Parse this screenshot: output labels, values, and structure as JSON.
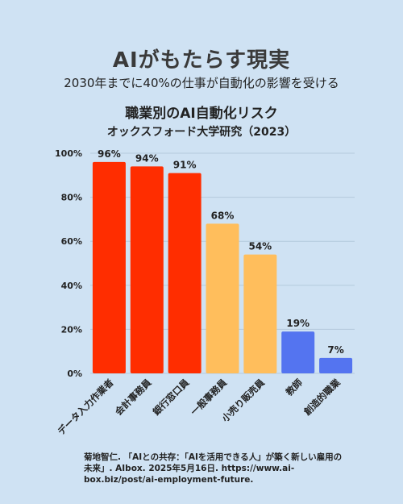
{
  "header": {
    "headline": "AIがもたらす現実",
    "subhead": "2030年までに40%の仕事が自動化の影響を受ける"
  },
  "chart_data": {
    "type": "bar",
    "title": "職業別のAI自動化リスク",
    "subtitle": "オックスフォード大学研究（2023）",
    "categories": [
      "データ入力作業者",
      "会計事務員",
      "銀行窓口員",
      "一般事務員",
      "小売り販売員",
      "教師",
      "創造的職業"
    ],
    "values": [
      96,
      94,
      91,
      68,
      54,
      19,
      7
    ],
    "value_labels": [
      "96%",
      "94%",
      "91%",
      "68%",
      "54%",
      "19%",
      "7%"
    ],
    "colors": [
      "#ff2d00",
      "#ff2d00",
      "#ff2d00",
      "#ffbe5c",
      "#ffbe5c",
      "#5474f0",
      "#5474f0"
    ],
    "yticks": [
      "0%",
      "20%",
      "40%",
      "60%",
      "80%",
      "100%"
    ],
    "ylim": [
      0,
      100
    ],
    "grid": true,
    "xlabel": "",
    "ylabel": ""
  },
  "citation": "菊地智仁. 「AIとの共存：「AIを活用できる人」が築く新しい雇用の未来」. AIbox. 2025年5月16日. https://www.ai-box.biz/post/ai-employment-future."
}
